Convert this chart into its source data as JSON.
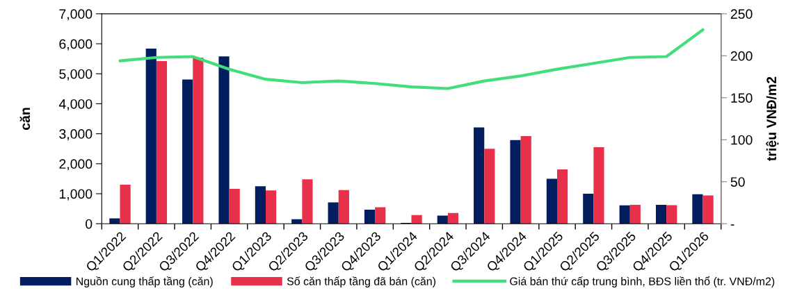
{
  "chart_data": {
    "type": "bar",
    "categories": [
      "Q1/2022",
      "Q2/2022",
      "Q3/2022",
      "Q4/2022",
      "Q1/2023",
      "Q2/2023",
      "Q3/2023",
      "Q4/2023",
      "Q1/2024",
      "Q2/2024",
      "Q3/2024",
      "Q4/2024",
      "Q1/2025",
      "Q2/2025",
      "Q3/2025",
      "Q4/2025",
      "Q1/2026"
    ],
    "ylabel": "căn",
    "y2label": "triệu VNĐ/m2",
    "ylim": [
      0,
      7000
    ],
    "yticks": [
      0,
      {
        "value": 1000,
        "label": "1,000"
      },
      {
        "value": 2000,
        "label": "2,000"
      },
      {
        "value": 3000,
        "label": "3,000"
      },
      {
        "value": 4000,
        "label": "4,000"
      },
      {
        "value": 5000,
        "label": "5,000"
      },
      {
        "value": 6000,
        "label": "6,000"
      },
      {
        "value": 7000,
        "label": "7,000"
      }
    ],
    "y2lim": [
      0,
      250
    ],
    "y2ticks": [
      {
        "value": 0,
        "label": "-"
      },
      50,
      100,
      150,
      200,
      250
    ],
    "series": [
      {
        "name": "Nguồn cung thấp tầng (căn)",
        "color": "#021e5e",
        "values": [
          180,
          5840,
          4810,
          5580,
          1250,
          150,
          710,
          470,
          30,
          270,
          3210,
          2790,
          1500,
          1000,
          610,
          630,
          980
        ]
      },
      {
        "name": "Số căn thấp tầng đã bán (căn)",
        "color": "#e8304b",
        "values": [
          1300,
          5420,
          5540,
          1160,
          1110,
          1480,
          1120,
          550,
          290,
          360,
          2500,
          2920,
          1810,
          2550,
          630,
          620,
          940
        ]
      },
      {
        "name": "Giá bán thứ cấp trung bình, BĐS liền thổ (tr. VNĐ/m2)",
        "type": "line",
        "axis": "y2",
        "color": "#41de7b",
        "values": [
          194,
          198,
          199,
          184,
          172,
          168,
          170,
          167,
          163,
          161,
          170,
          176,
          184,
          191,
          198,
          199,
          231
        ]
      }
    ],
    "grid": false,
    "legend": "bottom"
  }
}
